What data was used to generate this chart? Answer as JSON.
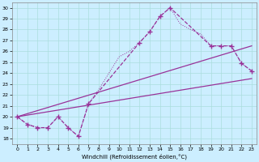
{
  "xlabel": "Windchill (Refroidissement éolien,°C)",
  "bg_color": "#cceeff",
  "grid_color": "#aadddd",
  "line_color": "#993399",
  "xlim": [
    -0.5,
    23.5
  ],
  "ylim": [
    17.5,
    30.5
  ],
  "xticks": [
    0,
    1,
    2,
    3,
    4,
    5,
    6,
    7,
    8,
    9,
    10,
    11,
    12,
    13,
    14,
    15,
    16,
    17,
    18,
    19,
    20,
    21,
    22,
    23
  ],
  "yticks": [
    18,
    19,
    20,
    21,
    22,
    23,
    24,
    25,
    26,
    27,
    28,
    29,
    30
  ],
  "curve_x": [
    0,
    1,
    2,
    3,
    4,
    5,
    6,
    7,
    8,
    9,
    10,
    11,
    12,
    13,
    14,
    15,
    16,
    17,
    18,
    19,
    20,
    21,
    22,
    23
  ],
  "curve_y": [
    20.0,
    19.3,
    19.0,
    19.0,
    20.0,
    19.0,
    18.2,
    21.2,
    22.5,
    24.0,
    25.5,
    26.0,
    26.8,
    27.8,
    29.2,
    30.0,
    28.5,
    28.0,
    27.6,
    26.5,
    26.5,
    26.5,
    24.9,
    24.2
  ],
  "line1_x": [
    0,
    23
  ],
  "line1_y": [
    20.0,
    23.5
  ],
  "line2_x": [
    0,
    23
  ],
  "line2_y": [
    20.0,
    26.5
  ],
  "sparse_x": [
    0,
    1,
    2,
    3,
    4,
    5,
    6,
    7,
    12,
    13,
    14,
    15,
    19,
    20,
    21,
    22,
    23
  ],
  "sparse_y": [
    20.0,
    19.3,
    19.0,
    19.0,
    20.0,
    19.0,
    18.2,
    21.2,
    26.8,
    27.8,
    29.2,
    30.0,
    26.5,
    26.5,
    26.5,
    24.9,
    24.2
  ]
}
